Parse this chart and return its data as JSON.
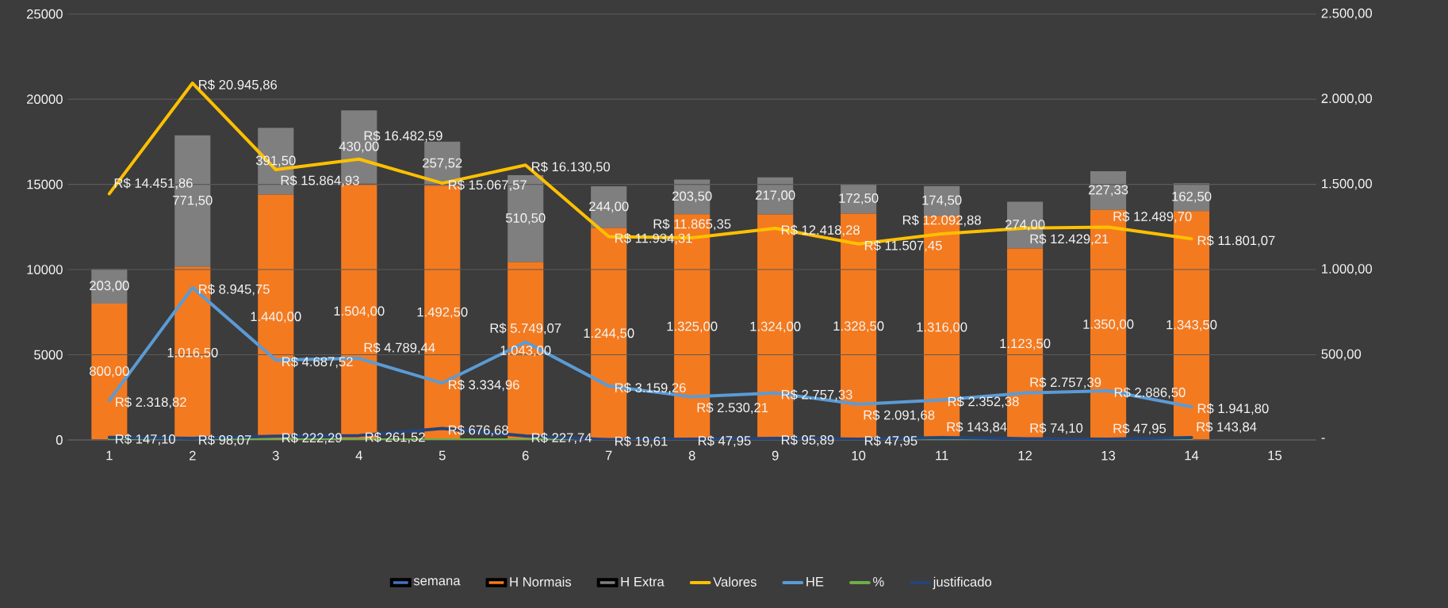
{
  "chart_data": {
    "type": "bar",
    "stacked": true,
    "grid": "y",
    "legend": "bottom",
    "categories": [
      "1",
      "2",
      "3",
      "4",
      "5",
      "6",
      "7",
      "8",
      "9",
      "10",
      "11",
      "12",
      "13",
      "14",
      "15"
    ],
    "ylim": [
      0,
      25000
    ],
    "yticks": [
      0,
      5000,
      10000,
      15000,
      20000,
      25000
    ],
    "y2lim": [
      0,
      2500
    ],
    "y2ticks": [
      {
        "value": 0,
        "label": "-"
      },
      {
        "value": 500,
        "label": "500,00"
      },
      {
        "value": 1000,
        "label": "1.000,00"
      },
      {
        "value": 1500,
        "label": "1.500,00"
      },
      {
        "value": 2000,
        "label": "2.000,00"
      },
      {
        "value": 2500,
        "label": "2.500,00"
      }
    ],
    "series": [
      {
        "name": "semana",
        "type": "bar",
        "axis": "y2",
        "color": "#4472c4",
        "values": [
          null,
          null,
          null,
          null,
          null,
          null,
          null,
          null,
          null,
          null,
          null,
          null,
          null,
          null,
          null
        ]
      },
      {
        "name": "H Normais",
        "type": "bar",
        "axis": "y2",
        "color": "#f47a1f",
        "values": [
          800,
          1016.5,
          1440,
          1504,
          1492.5,
          1043,
          1244.5,
          1325,
          1324,
          1328.5,
          1316,
          1123.5,
          1350,
          1343.5,
          null
        ],
        "value_labels": [
          "800,00",
          "1.016,50",
          "1.440,00",
          "1.504,00",
          "1.492,50",
          "1.043,00",
          "1.244,50",
          "1.325,00",
          "1.324,00",
          "1.328,50",
          "1.316,00",
          "1.123,50",
          "1.350,00",
          "1.343,50",
          null
        ]
      },
      {
        "name": "H Extra",
        "type": "bar",
        "axis": "y2",
        "color": "#7f7f7f",
        "values": [
          203,
          771.5,
          391.5,
          430,
          257.52,
          510.5,
          244,
          203.5,
          217,
          172.5,
          174.5,
          274,
          227.33,
          162.5,
          null
        ],
        "value_labels": [
          "203,00",
          "771,50",
          "391,50",
          "430,00",
          "257,52",
          "510,50",
          "244,00",
          "203,50",
          "217,00",
          "172,50",
          "174,50",
          "274,00",
          "227,33",
          "162,50",
          null
        ]
      },
      {
        "name": "Valores",
        "type": "line",
        "color": "#ffc000",
        "values": [
          14451.86,
          20945.86,
          15864.93,
          16482.59,
          15067.57,
          16130.5,
          11934.31,
          11865.35,
          12418.28,
          11507.45,
          12092.88,
          12429.21,
          12489.7,
          11801.07,
          null
        ],
        "value_labels": [
          "R$ 14.451,86",
          "R$ 20.945,86",
          "R$ 15.864,93",
          "R$ 16.482,59",
          "R$ 15.067,57",
          "R$ 16.130,50",
          "R$ 11.934,31",
          "R$ 11.865,35",
          "R$ 12.418,28",
          "R$ 11.507,45",
          "R$ 12.092,88",
          "R$ 12.429,21",
          "R$ 12.489,70",
          "R$ 11.801,07",
          null
        ]
      },
      {
        "name": "HE",
        "type": "line",
        "color": "#5b9bd5",
        "values": [
          2318.82,
          8945.75,
          4687.52,
          4789.44,
          3334.96,
          5749.07,
          3159.26,
          2530.21,
          2757.33,
          2091.68,
          2352.38,
          2757.39,
          2886.5,
          1941.8,
          null
        ],
        "value_labels": [
          "R$ 2.318,82",
          "R$ 8.945,75",
          "R$ 4.687,52",
          "R$ 4.789,44",
          "R$ 3.334,96",
          "R$ 5.749,07",
          "R$ 3.159,26",
          "R$ 2.530,21",
          "R$ 2.757,33",
          "R$ 2.091,68",
          "R$ 2.352,38",
          "R$ 2.757,39",
          "R$ 2.886,50",
          "R$ 1.941,80",
          null
        ]
      },
      {
        "name": "%",
        "type": "line",
        "color": "#70ad47",
        "values": [
          0,
          0,
          0,
          0,
          0,
          0,
          0,
          0,
          0,
          0,
          0,
          0,
          0,
          0,
          null
        ]
      },
      {
        "name": "justificado",
        "type": "line",
        "color": "#264478",
        "values": [
          147.1,
          98.07,
          222.29,
          261.52,
          676.68,
          227.74,
          19.61,
          47.95,
          95.89,
          47.95,
          143.84,
          74.1,
          47.95,
          143.84,
          null
        ],
        "value_labels": [
          "R$ 147,10",
          "R$ 98,07",
          "R$ 222,29",
          "R$ 261,52",
          "R$ 676,68",
          "R$ 227,74",
          "R$ 19,61",
          "R$ 47,95",
          "R$ 95,89",
          "R$ 47,95",
          "R$ 143,84",
          "R$ 74,10",
          "R$ 47,95",
          "R$ 143,84",
          null
        ]
      }
    ]
  }
}
